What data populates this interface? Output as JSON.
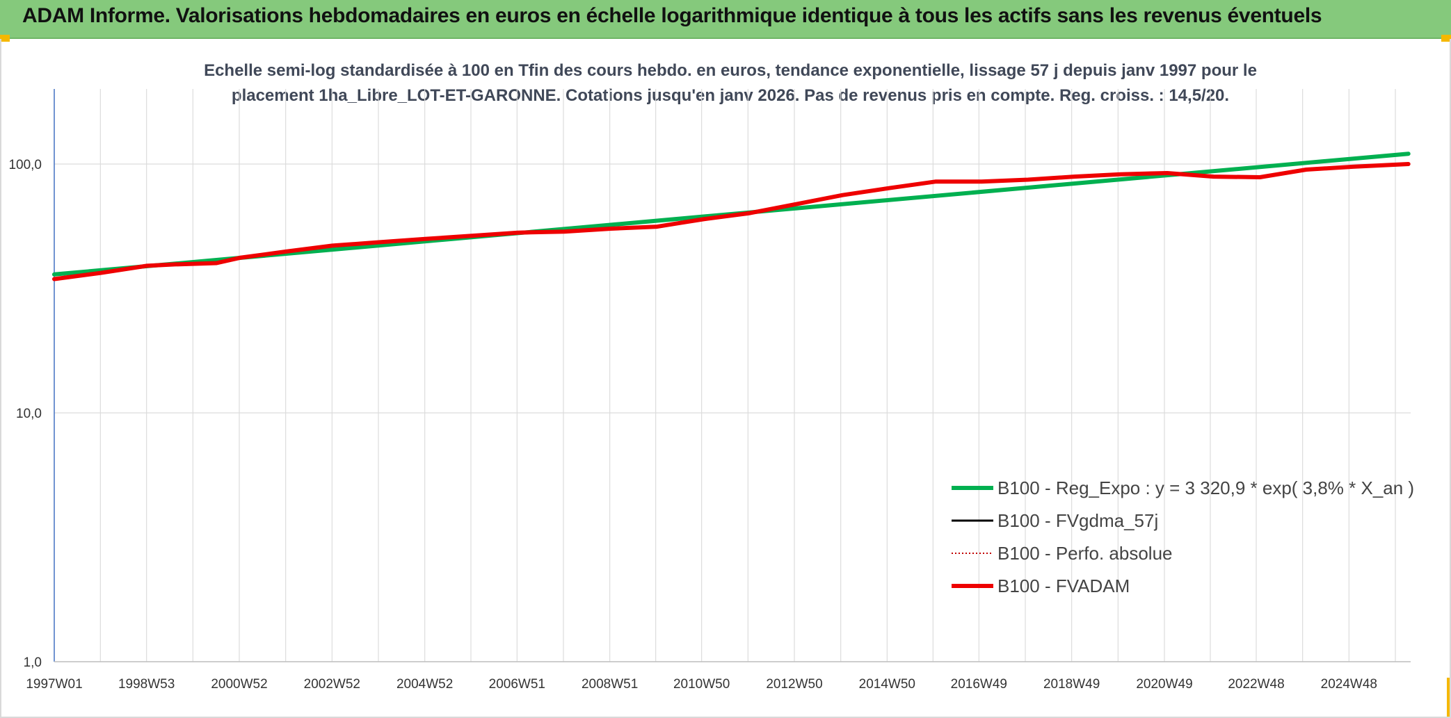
{
  "header": {
    "title": "ADAM Informe. Valorisations hebdomadaires en euros en échelle logarithmique identique à tous les actifs sans les revenus éventuels"
  },
  "chart_data": {
    "type": "line",
    "title": "Echelle semi-log standardisée à 100 en Tfin des cours hebdo. en euros, tendance exponentielle, lissage 57 j depuis janv 1997 pour le placement 1ha_Libre_LOT-ET-GARONNE. Cotations jusqu'en janv 2026. Pas de revenus pris en compte. Reg. croiss. : 14,5/20.",
    "xlabel": "",
    "ylabel": "",
    "y_scale": "log",
    "ylim": [
      1,
      200
    ],
    "xlim": [
      1997.0,
      2026.25
    ],
    "grid": true,
    "legend_position": "bottom-right",
    "y_ticks": [
      {
        "value": 1,
        "label": "1,0"
      },
      {
        "value": 10,
        "label": "10,0"
      },
      {
        "value": 100,
        "label": "100,0"
      }
    ],
    "x_ticks": [
      {
        "value": 1997.0,
        "label": "1997W01"
      },
      {
        "value": 1998.99,
        "label": "1998W53"
      },
      {
        "value": 2000.99,
        "label": "2000W52"
      },
      {
        "value": 2002.99,
        "label": "2002W52"
      },
      {
        "value": 2004.99,
        "label": "2004W52"
      },
      {
        "value": 2006.98,
        "label": "2006W51"
      },
      {
        "value": 2008.98,
        "label": "2008W51"
      },
      {
        "value": 2010.96,
        "label": "2010W50"
      },
      {
        "value": 2012.96,
        "label": "2012W50"
      },
      {
        "value": 2014.96,
        "label": "2014W50"
      },
      {
        "value": 2016.94,
        "label": "2016W49"
      },
      {
        "value": 2018.94,
        "label": "2018W49"
      },
      {
        "value": 2020.94,
        "label": "2020W49"
      },
      {
        "value": 2022.92,
        "label": "2022W48"
      },
      {
        "value": 2024.92,
        "label": "2024W48"
      }
    ],
    "series": [
      {
        "name": "B100 - Reg_Expo : y = 3 320,9 * exp( 3,8% *  X_an )",
        "color": "#00b050",
        "style": "solid-thick",
        "x": [
          1997.0,
          2026.2
        ],
        "y": [
          36.0,
          110.0
        ]
      },
      {
        "name": "B100 - FVgdma_57j",
        "color": "#000000",
        "style": "solid-thin",
        "x": [],
        "y": []
      },
      {
        "name": "B100 - Perfo. absolue",
        "color": "#c00000",
        "style": "dotted",
        "x": [],
        "y": []
      },
      {
        "name": "B100 - FVADAM",
        "color": "#ee0000",
        "style": "solid-thick",
        "x": [
          1997.0,
          1998.0,
          1999.0,
          1999.6,
          2000.5,
          2001.0,
          2002.0,
          2003.0,
          2004.0,
          2005.0,
          2006.0,
          2007.0,
          2008.0,
          2009.0,
          2010.0,
          2010.5,
          2011.0,
          2012.0,
          2013.0,
          2014.0,
          2015.0,
          2016.0,
          2017.0,
          2018.0,
          2019.0,
          2020.0,
          2021.0,
          2022.0,
          2023.0,
          2024.0,
          2025.0,
          2026.2
        ],
        "y": [
          34.5,
          36.5,
          39.0,
          39.5,
          40.0,
          42.0,
          44.5,
          47.0,
          48.5,
          50.0,
          51.5,
          53.0,
          53.5,
          55.0,
          56.0,
          58.0,
          60.0,
          63.5,
          69.0,
          75.0,
          80.0,
          85.0,
          85.0,
          86.5,
          89.0,
          91.0,
          92.0,
          89.0,
          88.5,
          95.0,
          97.5,
          100.0
        ]
      }
    ]
  }
}
